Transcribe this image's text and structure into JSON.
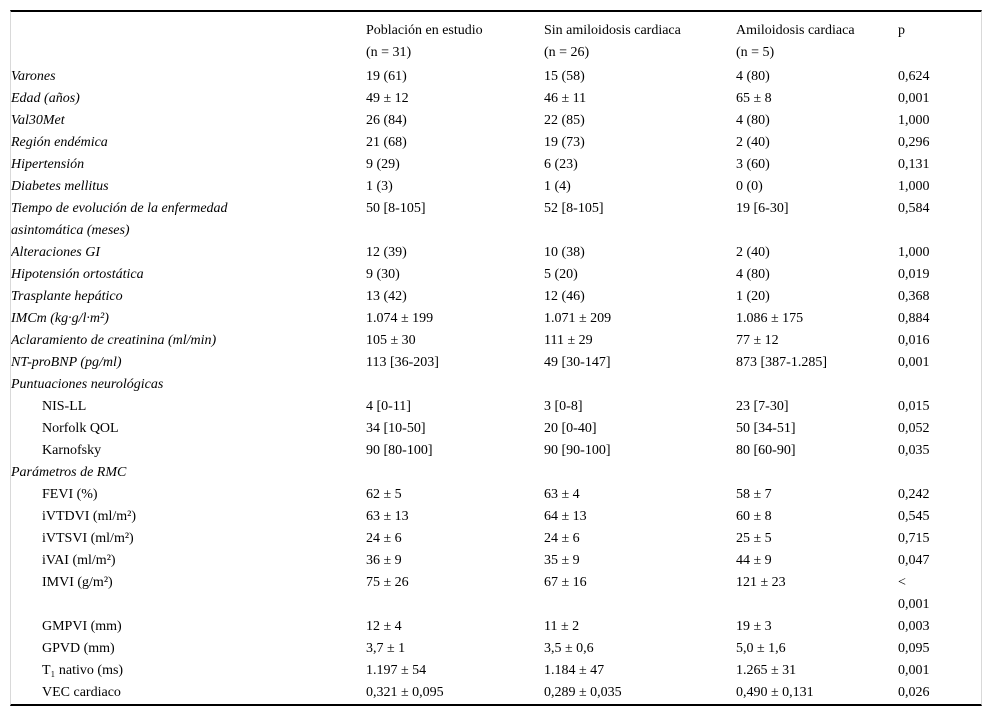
{
  "table": {
    "columns": [
      {
        "text": ""
      },
      {
        "text": "Población en estudio\n(n = 31)"
      },
      {
        "text": "Sin amiloidosis cardiaca\n(n = 26)"
      },
      {
        "text": "Amiloidosis cardiaca\n(n = 5)"
      },
      {
        "text": "p"
      }
    ],
    "rows": [
      {
        "label": "Varones",
        "italic": true,
        "indent": false,
        "values": [
          "19 (61)",
          "15 (58)",
          "4 (80)",
          "0,624"
        ]
      },
      {
        "label": "Edad (años)",
        "italic": true,
        "indent": false,
        "values": [
          "49 ± 12",
          "46 ± 11",
          "65 ± 8",
          "0,001"
        ]
      },
      {
        "label": "Val30Met",
        "italic": true,
        "indent": false,
        "values": [
          "26 (84)",
          "22 (85)",
          "4 (80)",
          "1,000"
        ]
      },
      {
        "label": "Región endémica",
        "italic": true,
        "indent": false,
        "values": [
          "21 (68)",
          "19 (73)",
          "2 (40)",
          "0,296"
        ]
      },
      {
        "label": "Hipertensión",
        "italic": true,
        "indent": false,
        "values": [
          "9 (29)",
          "6 (23)",
          "3 (60)",
          "0,131"
        ]
      },
      {
        "label": "Diabetes mellitus",
        "italic": true,
        "indent": false,
        "values": [
          "1 (3)",
          "1 (4)",
          "0 (0)",
          "1,000"
        ]
      },
      {
        "label": "Tiempo de evolución de la enfermedad\nasintomática (meses)",
        "italic": true,
        "indent": false,
        "values": [
          "50 [8-105]",
          "52 [8-105]",
          "19 [6-30]",
          "0,584"
        ]
      },
      {
        "label": "Alteraciones GI",
        "italic": true,
        "indent": false,
        "values": [
          "12 (39)",
          "10 (38)",
          "2 (40)",
          "1,000"
        ]
      },
      {
        "label": "Hipotensión ortostática",
        "italic": true,
        "indent": false,
        "values": [
          "9 (30)",
          "5 (20)",
          "4 (80)",
          "0,019"
        ]
      },
      {
        "label": "Trasplante hepático",
        "italic": true,
        "indent": false,
        "values": [
          "13 (42)",
          "12 (46)",
          "1 (20)",
          "0,368"
        ]
      },
      {
        "label": "IMCm (kg·g/l·m²)",
        "italic": true,
        "indent": false,
        "values": [
          "1.074 ± 199",
          "1.071 ± 209",
          "1.086 ± 175",
          "0,884"
        ]
      },
      {
        "label": "Aclaramiento de creatinina (ml/min)",
        "italic": true,
        "indent": false,
        "values": [
          "105 ± 30",
          "111 ± 29",
          "77 ± 12",
          "0,016"
        ]
      },
      {
        "label": "NT-proBNP (pg/ml)",
        "italic": true,
        "indent": false,
        "values": [
          "113 [36-203]",
          "49 [30-147]",
          "873 [387-1.285]",
          "0,001"
        ]
      },
      {
        "label": "Puntuaciones neurológicas",
        "italic": true,
        "indent": false,
        "values": [
          "",
          "",
          "",
          ""
        ]
      },
      {
        "label": "NIS-LL",
        "italic": false,
        "indent": true,
        "values": [
          "4 [0-11]",
          "3 [0-8]",
          "23 [7-30]",
          "0,015"
        ]
      },
      {
        "label": "Norfolk QOL",
        "italic": false,
        "indent": true,
        "values": [
          "34 [10-50]",
          "20 [0-40]",
          "50 [34-51]",
          "0,052"
        ]
      },
      {
        "label": "Karnofsky",
        "italic": false,
        "indent": true,
        "values": [
          "90 [80-100]",
          "90 [90-100]",
          "80 [60-90]",
          "0,035"
        ]
      },
      {
        "label": "Parámetros de RMC",
        "italic": true,
        "indent": false,
        "values": [
          "",
          "",
          "",
          ""
        ]
      },
      {
        "label": "FEVI (%)",
        "italic": false,
        "indent": true,
        "values": [
          "62 ± 5",
          "63 ± 4",
          "58 ± 7",
          "0,242"
        ]
      },
      {
        "label": "iVTDVI (ml/m²)",
        "italic": false,
        "indent": true,
        "values": [
          "63 ± 13",
          "64 ± 13",
          "60 ± 8",
          "0,545"
        ]
      },
      {
        "label": "iVTSVI (ml/m²)",
        "italic": false,
        "indent": true,
        "values": [
          "24 ± 6",
          "24 ± 6",
          "25 ± 5",
          "0,715"
        ]
      },
      {
        "label": "iVAI (ml/m²)",
        "italic": false,
        "indent": true,
        "values": [
          "36 ± 9",
          "35 ± 9",
          "44 ± 9",
          "0,047"
        ]
      },
      {
        "label": "IMVI (g/m²)",
        "italic": false,
        "indent": true,
        "values": [
          "75 ± 26",
          "67 ± 16",
          "121 ± 23",
          "<\n0,001"
        ]
      },
      {
        "label": "GMPVI (mm)",
        "italic": false,
        "indent": true,
        "values": [
          "12 ± 4",
          "11 ± 2",
          "19 ± 3",
          "0,003"
        ]
      },
      {
        "label": "GPVD (mm)",
        "italic": false,
        "indent": true,
        "values": [
          "3,7 ± 1",
          "3,5 ± 0,6",
          "5,0 ± 1,6",
          "0,095"
        ]
      },
      {
        "label": "T₁ nativo (ms)",
        "italic": false,
        "indent": true,
        "values": [
          "1.197 ± 54",
          "1.184 ± 47",
          "1.265 ± 31",
          "0,001"
        ]
      },
      {
        "label": "VEC cardiaco",
        "italic": false,
        "indent": true,
        "values": [
          "0,321 ± 0,095",
          "0,289 ± 0,035",
          "0,490 ± 0,131",
          "0,026"
        ]
      }
    ]
  }
}
